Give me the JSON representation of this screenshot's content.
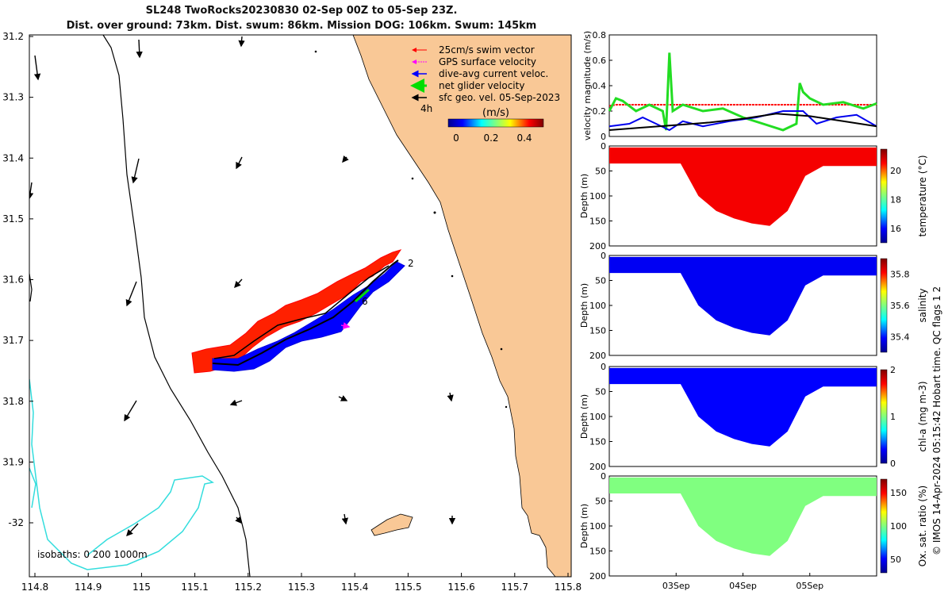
{
  "header": {
    "title_line1": "SL248 TwoRocks20230830 02-Sep 00Z to 05-Sep 23Z.",
    "title_line2": "Dist. over ground: 73km. Dist. swum: 86km. Mission DOG: 106km. Swum: 145km"
  },
  "map": {
    "x_ticks": [
      "114.8",
      "114.9",
      "115",
      "115.1",
      "115.2",
      "115.3",
      "115.4",
      "115.5",
      "115.6",
      "115.7",
      "115.8"
    ],
    "y_ticks": [
      "31.2",
      "31.3",
      "31.4",
      "31.5",
      "31.6",
      "31.7",
      "31.8",
      "31.9",
      "-32"
    ],
    "legend": {
      "items": [
        {
          "label": "25cm/s swim vector",
          "color": "#ff0000"
        },
        {
          "label": "GPS surface velocity",
          "color": "#ff00ff"
        },
        {
          "label": "dive-avg current veloc.",
          "color": "#0000ff"
        },
        {
          "label": "net glider velocity",
          "color": "#00dd00"
        },
        {
          "label": "sfc geo. vel. 05-Sep-2023",
          "color": "#000000"
        }
      ],
      "time_label": "4h",
      "units": "(m/s)",
      "colorbar_ticks": [
        "0",
        "0.2",
        "0.4"
      ]
    },
    "isobaths_label": "isobaths: 0   200  1000m",
    "track_labels": [
      "2",
      "6"
    ],
    "colors": {
      "land": "#f9c896",
      "isobath_200": "#000000",
      "isobath_1000": "#33dddd",
      "swim": "#ff0000",
      "track": "#0000ff"
    }
  },
  "chart_data": [
    {
      "type": "line",
      "title": "",
      "ylabel": "velocity magnitude (m/s)",
      "ylim": [
        0,
        0.8
      ],
      "y_ticks": [
        "0.8",
        "0.6",
        "0.4",
        "0.2",
        "0"
      ],
      "x_range_days": [
        0,
        4
      ],
      "series": [
        {
          "name": "swim speed",
          "color": "#ff0000",
          "x": [
            0,
            0.1,
            0.4,
            1.0,
            2.0,
            3.0,
            4.0
          ],
          "y": [
            0.24,
            0.25,
            0.25,
            0.25,
            0.25,
            0.25,
            0.25
          ]
        },
        {
          "name": "net glider velocity",
          "color": "#22dd22",
          "x": [
            0,
            0.1,
            0.2,
            0.4,
            0.6,
            0.8,
            0.85,
            0.9,
            0.95,
            1.1,
            1.4,
            1.7,
            2.0,
            2.3,
            2.6,
            2.8,
            2.85,
            2.9,
            3.0,
            3.2,
            3.5,
            3.8,
            4.0
          ],
          "y": [
            0.2,
            0.3,
            0.28,
            0.2,
            0.25,
            0.2,
            0.05,
            0.66,
            0.2,
            0.25,
            0.2,
            0.22,
            0.15,
            0.1,
            0.05,
            0.1,
            0.42,
            0.35,
            0.3,
            0.25,
            0.27,
            0.22,
            0.26
          ]
        },
        {
          "name": "dive-avg current",
          "color": "#0000ee",
          "x": [
            0,
            0.3,
            0.5,
            0.7,
            0.9,
            1.1,
            1.4,
            1.8,
            2.2,
            2.6,
            2.9,
            3.1,
            3.4,
            3.7,
            4.0
          ],
          "y": [
            0.08,
            0.1,
            0.15,
            0.1,
            0.05,
            0.12,
            0.08,
            0.12,
            0.15,
            0.2,
            0.2,
            0.1,
            0.15,
            0.17,
            0.08
          ]
        },
        {
          "name": "sfc geo. vel.",
          "color": "#000000",
          "x": [
            0,
            0.5,
            1.0,
            1.5,
            2.0,
            2.5,
            3.0,
            3.5,
            4.0
          ],
          "y": [
            0.05,
            0.07,
            0.09,
            0.11,
            0.14,
            0.18,
            0.16,
            0.12,
            0.08
          ]
        }
      ]
    },
    {
      "type": "heatmap",
      "ylabel": "Depth (m)",
      "colorbar_label": "temperature (°C)",
      "clim": [
        15,
        21.5
      ],
      "colorbar_ticks": [
        "20",
        "18",
        "16"
      ],
      "y_ticks": [
        "0",
        "50",
        "100",
        "150",
        "200"
      ],
      "bottom_depth_profile": [
        35,
        35,
        35,
        35,
        35,
        100,
        130,
        145,
        155,
        160,
        130,
        60,
        40,
        40,
        40,
        40
      ],
      "dominant_value": 20.6
    },
    {
      "type": "heatmap",
      "ylabel": "Depth (m)",
      "colorbar_label": "salinity",
      "clim": [
        35.3,
        35.9
      ],
      "colorbar_ticks": [
        "35.8",
        "35.6",
        "35.4"
      ],
      "y_ticks": [
        "0",
        "50",
        "100",
        "150",
        "200"
      ],
      "bottom_depth_profile": [
        35,
        35,
        35,
        35,
        35,
        100,
        130,
        145,
        155,
        160,
        130,
        60,
        40,
        40,
        40,
        40
      ],
      "dominant_value": 35.38
    },
    {
      "type": "heatmap",
      "ylabel": "Depth (m)",
      "colorbar_label": "chl-a (mg m-3)",
      "clim": [
        0,
        2
      ],
      "colorbar_ticks": [
        "2",
        "1",
        "0"
      ],
      "y_ticks": [
        "0",
        "50",
        "100",
        "150",
        "200"
      ],
      "bottom_depth_profile": [
        35,
        35,
        35,
        35,
        35,
        100,
        130,
        145,
        155,
        160,
        130,
        60,
        40,
        40,
        40,
        40
      ],
      "dominant_value": 0.3
    },
    {
      "type": "heatmap",
      "ylabel": "Depth (m)",
      "colorbar_label": "Ox. sat. ratio (%)",
      "clim": [
        30,
        170
      ],
      "colorbar_ticks": [
        "150",
        "100",
        "50"
      ],
      "y_ticks": [
        "0",
        "50",
        "100",
        "150",
        "200"
      ],
      "x_ticks": [
        "03Sep",
        "04Sep",
        "05Sep"
      ],
      "bottom_depth_profile": [
        35,
        35,
        35,
        35,
        35,
        100,
        130,
        145,
        155,
        160,
        130,
        60,
        40,
        40,
        40,
        40
      ],
      "dominant_value": 100
    }
  ],
  "footer": {
    "credit": "© IMOS 14-Apr-2024 05:15:42 Hobart time. QC flags 1  2"
  }
}
